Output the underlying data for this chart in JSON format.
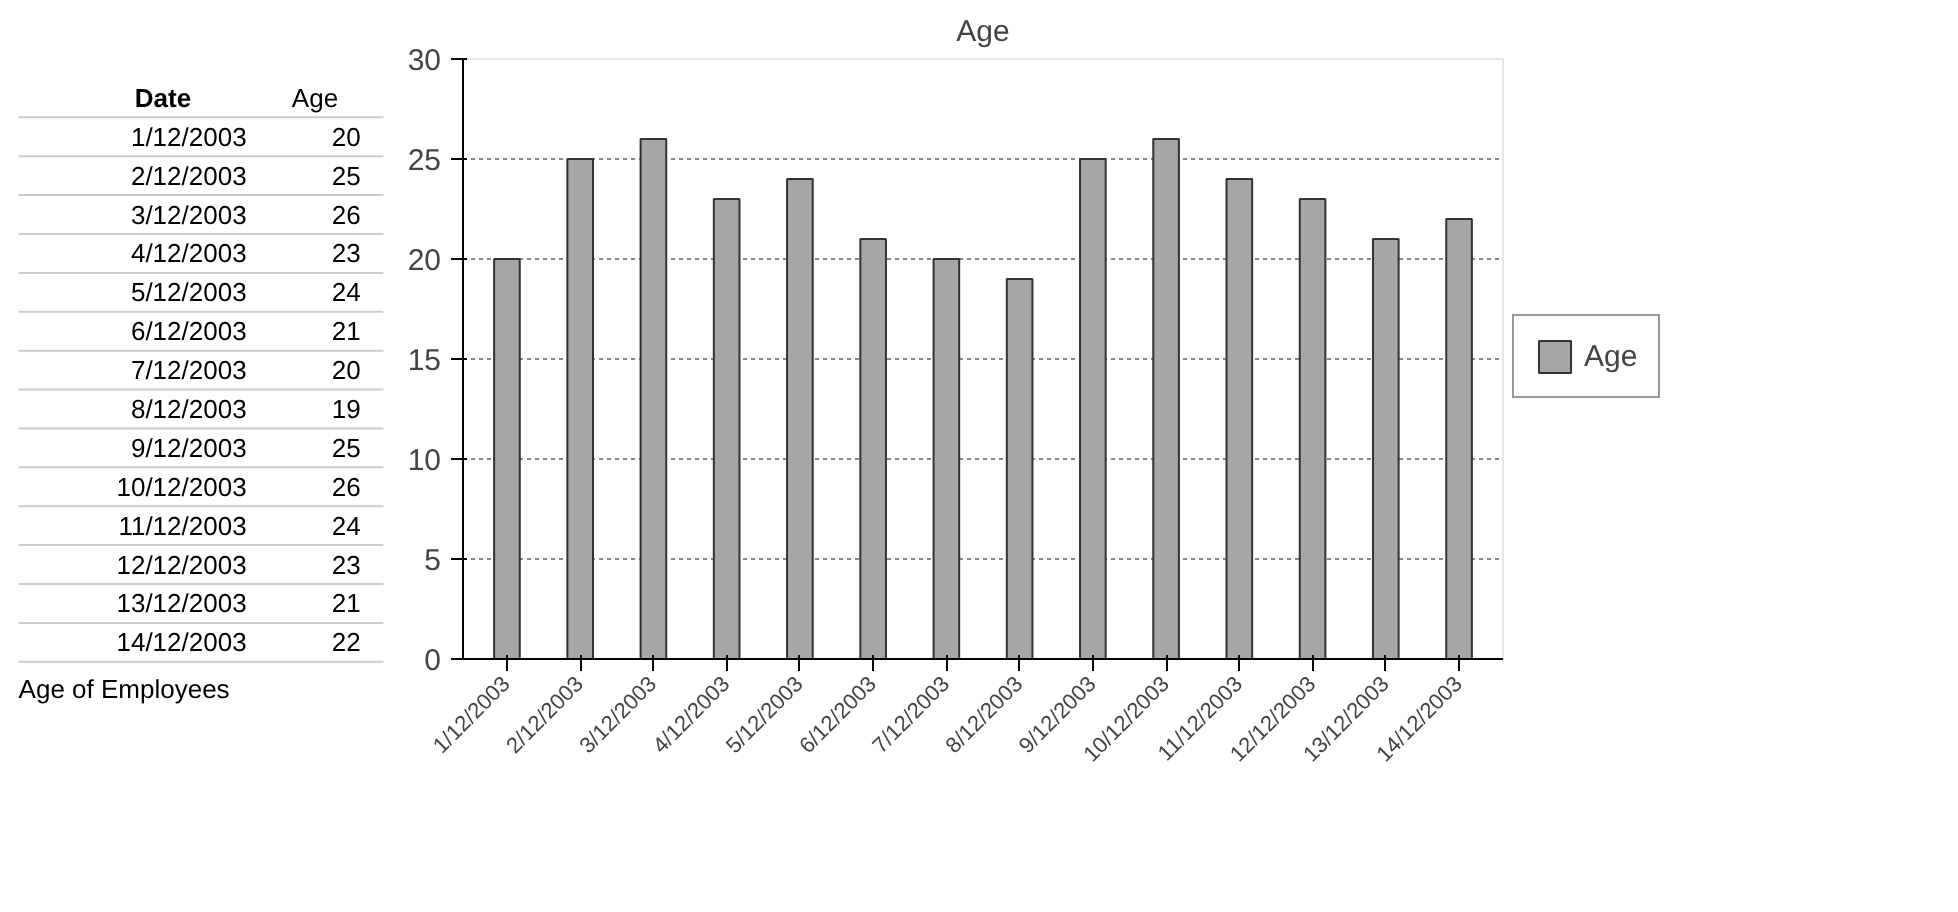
{
  "chart_data": [
    {
      "type": "other",
      "annotations": [
        "Date",
        "Age",
        "1/12/2003",
        "20",
        "2/12/2003",
        "25",
        "3/12/2003",
        "26",
        "4/12/2003",
        "23",
        "5/12/2003",
        "24",
        "6/12/2003",
        "21",
        "7/12/2003",
        "20",
        "8/12/2003",
        "19",
        "9/12/2003",
        "25",
        "10/12/2003",
        "26",
        "11/12/2003",
        "24",
        "12/12/2003",
        "23",
        "13/12/2003",
        "21",
        "14/12/2003",
        "22",
        "Age of Employees"
      ]
    },
    {
      "type": "bar",
      "title": "Age",
      "categories": [
        "1/12/2003",
        "2/12/2003",
        "3/12/2003",
        "4/12/2003",
        "5/12/2003",
        "6/12/2003",
        "7/12/2003",
        "8/12/2003",
        "9/12/2003",
        "10/12/2003",
        "11/12/2003",
        "12/12/2003",
        "13/12/2003",
        "14/12/2003"
      ],
      "series": [
        {
          "name": "Age",
          "color": "#a6a6a6",
          "values": [
            20,
            25,
            26,
            23,
            24,
            21,
            20,
            19,
            25,
            26,
            24,
            23,
            21,
            22
          ]
        }
      ],
      "ylim": [
        0,
        30
      ],
      "yticks": [
        0,
        5,
        10,
        15,
        20,
        25,
        30
      ],
      "grid": "y",
      "legend": "right"
    }
  ]
}
